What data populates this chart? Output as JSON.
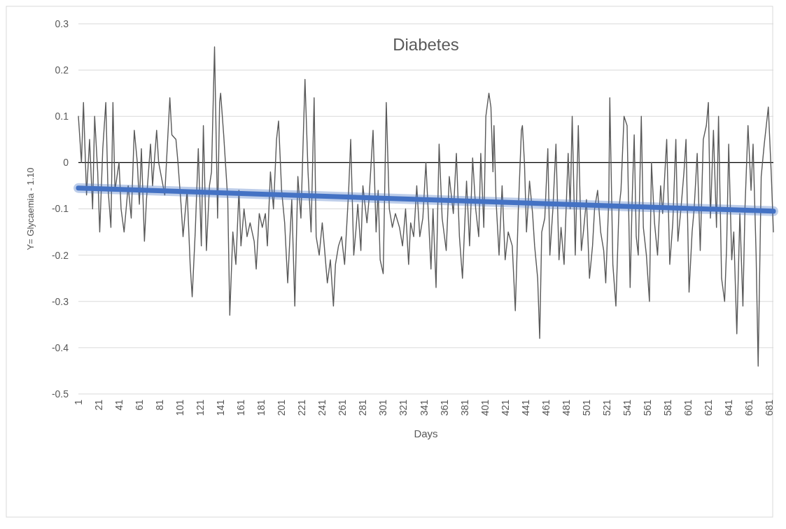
{
  "chart_data": {
    "type": "line",
    "title": "Diabetes",
    "xlabel": "Days",
    "ylabel": "Y= Glycaemia - 1.10",
    "x": [
      1,
      4,
      6,
      9,
      12,
      15,
      17,
      20,
      22,
      25,
      28,
      30,
      33,
      35,
      37,
      41,
      43,
      46,
      50,
      53,
      56,
      59,
      61,
      63,
      66,
      68,
      72,
      74,
      78,
      80,
      86,
      91,
      93,
      97,
      99,
      102,
      104,
      108,
      111,
      113,
      116,
      119,
      122,
      124,
      127,
      130,
      132,
      135,
      138,
      140,
      141,
      144,
      148,
      150,
      153,
      156,
      159,
      161,
      164,
      167,
      170,
      174,
      176,
      179,
      182,
      185,
      187,
      190,
      193,
      196,
      198,
      201,
      204,
      207,
      211,
      214,
      217,
      220,
      224,
      227,
      230,
      233,
      235,
      238,
      241,
      243,
      246,
      249,
      252,
      254,
      257,
      260,
      263,
      265,
      267,
      269,
      272,
      274,
      276,
      279,
      281,
      285,
      287,
      291,
      294,
      296,
      298,
      301,
      304,
      307,
      310,
      313,
      317,
      320,
      323,
      326,
      328,
      331,
      334,
      337,
      340,
      343,
      348,
      350,
      353,
      356,
      359,
      363,
      366,
      370,
      373,
      376,
      379,
      383,
      386,
      389,
      392,
      395,
      397,
      400,
      402,
      405,
      407,
      409,
      410,
      412,
      415,
      418,
      421,
      424,
      428,
      431,
      434,
      437,
      438,
      440,
      442,
      445,
      448,
      450,
      453,
      455,
      457,
      460,
      463,
      465,
      468,
      471,
      474,
      476,
      479,
      483,
      485,
      487,
      490,
      493,
      496,
      498,
      501,
      504,
      507,
      509,
      512,
      515,
      518,
      520,
      523,
      524,
      527,
      530,
      533,
      535,
      538,
      541,
      544,
      546,
      548,
      550,
      552,
      555,
      557,
      560,
      563,
      565,
      568,
      571,
      574,
      576,
      580,
      583,
      586,
      589,
      591,
      594,
      597,
      599,
      602,
      605,
      607,
      610,
      613,
      616,
      619,
      621,
      623,
      626,
      629,
      631,
      634,
      637,
      639,
      641,
      644,
      646,
      649,
      652,
      655,
      657,
      660,
      663,
      665,
      668,
      670,
      673,
      676,
      678,
      680,
      683,
      685
    ],
    "series": [
      {
        "color": "#595959",
        "values": [
          0.1,
          0.0,
          0.13,
          -0.07,
          0.05,
          -0.1,
          0.1,
          -0.02,
          -0.15,
          0.03,
          0.13,
          -0.05,
          -0.14,
          0.13,
          -0.06,
          0.0,
          -0.1,
          -0.15,
          -0.05,
          -0.12,
          0.07,
          0.0,
          -0.09,
          0.03,
          -0.17,
          -0.08,
          0.04,
          -0.05,
          0.07,
          0.0,
          -0.07,
          0.14,
          0.06,
          0.05,
          0.0,
          -0.09,
          -0.16,
          -0.06,
          -0.22,
          -0.29,
          -0.15,
          0.03,
          -0.18,
          0.08,
          -0.19,
          -0.05,
          -0.02,
          0.25,
          -0.12,
          0.13,
          0.15,
          0.06,
          -0.08,
          -0.33,
          -0.15,
          -0.22,
          -0.06,
          -0.18,
          -0.1,
          -0.16,
          -0.13,
          -0.17,
          -0.23,
          -0.11,
          -0.14,
          -0.11,
          -0.18,
          -0.02,
          -0.1,
          0.05,
          0.09,
          -0.06,
          -0.13,
          -0.26,
          -0.08,
          -0.31,
          -0.03,
          -0.12,
          0.18,
          -0.02,
          -0.15,
          0.14,
          -0.16,
          -0.2,
          -0.13,
          -0.18,
          -0.26,
          -0.21,
          -0.31,
          -0.22,
          -0.18,
          -0.16,
          -0.22,
          -0.14,
          -0.06,
          0.05,
          -0.2,
          -0.15,
          -0.09,
          -0.19,
          -0.05,
          -0.13,
          -0.08,
          0.07,
          -0.15,
          -0.06,
          -0.21,
          -0.24,
          0.13,
          -0.1,
          -0.14,
          -0.11,
          -0.14,
          -0.18,
          -0.1,
          -0.22,
          -0.13,
          -0.16,
          -0.05,
          -0.16,
          -0.12,
          0.0,
          -0.23,
          -0.1,
          -0.27,
          0.04,
          -0.12,
          -0.19,
          -0.03,
          -0.11,
          0.02,
          -0.16,
          -0.25,
          -0.04,
          -0.18,
          0.01,
          -0.1,
          -0.16,
          0.02,
          -0.14,
          0.1,
          0.15,
          0.12,
          -0.02,
          0.08,
          -0.08,
          -0.2,
          -0.05,
          -0.21,
          -0.15,
          -0.18,
          -0.32,
          -0.1,
          0.07,
          0.08,
          0.0,
          -0.15,
          -0.04,
          -0.11,
          -0.18,
          -0.25,
          -0.38,
          -0.15,
          -0.12,
          0.03,
          -0.2,
          -0.1,
          0.04,
          -0.21,
          -0.14,
          -0.22,
          0.02,
          -0.1,
          0.1,
          -0.2,
          0.08,
          -0.19,
          -0.15,
          -0.08,
          -0.25,
          -0.18,
          -0.1,
          -0.06,
          -0.15,
          -0.19,
          -0.26,
          -0.08,
          0.14,
          -0.22,
          -0.31,
          -0.1,
          -0.06,
          0.1,
          0.08,
          -0.27,
          -0.08,
          0.06,
          -0.16,
          -0.2,
          0.1,
          -0.14,
          -0.2,
          -0.3,
          0.0,
          -0.13,
          -0.2,
          -0.05,
          -0.11,
          0.05,
          -0.22,
          -0.13,
          0.05,
          -0.17,
          -0.1,
          -0.02,
          0.05,
          -0.28,
          -0.15,
          -0.1,
          0.02,
          -0.19,
          0.05,
          0.08,
          0.13,
          -0.12,
          0.07,
          -0.14,
          0.1,
          -0.25,
          -0.3,
          -0.18,
          0.04,
          -0.21,
          -0.15,
          -0.37,
          -0.11,
          -0.31,
          -0.1,
          0.08,
          -0.06,
          0.04,
          -0.2,
          -0.44,
          -0.03,
          0.04,
          0.08,
          0.12,
          -0.03,
          -0.15
        ]
      },
      {
        "type": "line",
        "color": "#4472c4",
        "x": [
          1,
          685
        ],
        "values": [
          -0.055,
          -0.105
        ]
      }
    ],
    "xlim": [
      1,
      685
    ],
    "xticks": [
      1,
      21,
      41,
      61,
      81,
      101,
      121,
      141,
      161,
      181,
      201,
      221,
      241,
      261,
      281,
      301,
      321,
      341,
      361,
      381,
      401,
      421,
      441,
      461,
      481,
      501,
      521,
      541,
      561,
      581,
      601,
      621,
      641,
      661,
      681
    ],
    "ylim": [
      -0.5,
      0.3
    ],
    "yticks": [
      -0.5,
      -0.4,
      -0.3,
      -0.2,
      -0.1,
      0,
      0.1,
      0.2,
      0.3
    ],
    "grid": "y",
    "marker": "none",
    "line_style": "solid"
  }
}
